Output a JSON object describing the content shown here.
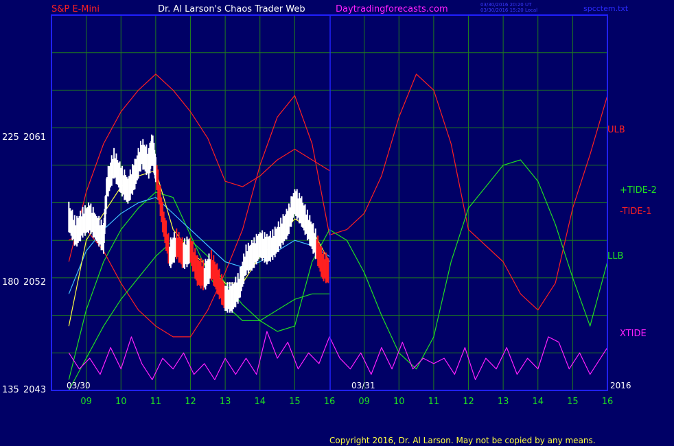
{
  "header": {
    "symbol": "S&P E-Mini",
    "author": "Dr. Al Larson's Chaos Trader Web",
    "site": "Daytradingforecasts.com",
    "stamp_ut": "03/30/2016 20:20 UT",
    "stamp_local": "03/30/2016 15:20 Local",
    "file": "spcctem.txt"
  },
  "footer": {
    "copyright": "Copyright 2016, Dr. Al Larson. May not be copied by any means."
  },
  "colors": {
    "background": "#000066",
    "frame": "#2020ff",
    "grid": "#1f7a1f",
    "ulb": "#ff2020",
    "llb": "#20e020",
    "xtide": "#ff20ff",
    "cyan_avg": "#40c0ff",
    "yellow_avg": "#ffff40"
  },
  "chart_data": {
    "type": "line",
    "title": "",
    "y_ticks": [
      {
        "left": "225",
        "right": "2061",
        "value": 2061
      },
      {
        "left": "180",
        "right": "2052",
        "value": 2052
      },
      {
        "left": "135",
        "right": "2043",
        "value": 2043
      }
    ],
    "ylim": [
      2043,
      2078
    ],
    "x_hours": [
      "09",
      "10",
      "11",
      "12",
      "13",
      "14",
      "15",
      "16",
      "09",
      "10",
      "11",
      "12",
      "13",
      "14",
      "15",
      "16"
    ],
    "dates": [
      "03/30",
      "03/31"
    ],
    "year": "2016",
    "session_divider_hour": 16,
    "legend": [
      {
        "label": "ULB",
        "color": "#ff2020"
      },
      {
        "label": "+TIDE-2",
        "color": "#20e020"
      },
      {
        "label": "-TIDE-1",
        "color": "#ff2020"
      },
      {
        "label": "LLB",
        "color": "#20e020"
      },
      {
        "label": "XTIDE",
        "color": "#ff20ff"
      }
    ],
    "series": [
      {
        "name": "ULB",
        "color": "#ff2020",
        "x": [
          8.5,
          9.0,
          9.5,
          10.0,
          10.5,
          11.0,
          11.5,
          12.0,
          12.5,
          13.0,
          13.5,
          14.0,
          14.5,
          15.0,
          15.5,
          16.0
        ],
        "y": [
          2055,
          2061.5,
          2066,
          2069,
          2071,
          2072.5,
          2071,
          2069,
          2066.5,
          2062.5,
          2062,
          2063,
          2064.5,
          2065.5,
          2064.5,
          2063.5
        ]
      },
      {
        "name": "LLB",
        "color": "#20e020",
        "x": [
          8.5,
          9.0,
          9.5,
          10.0,
          10.5,
          11.0,
          11.5,
          12.0,
          12.5,
          13.0,
          13.5,
          14.0,
          14.5,
          15.0,
          15.5,
          16.0
        ],
        "y": [
          2044,
          2050.5,
          2055,
          2058,
          2060,
          2061.5,
          2061,
          2057.5,
          2054,
          2051,
          2049.5,
          2049.5,
          2050.5,
          2051.5,
          2052,
          2052
        ]
      },
      {
        "name": "-TIDE-1",
        "color": "#ff2020",
        "x": [
          8.5,
          9.0,
          9.5,
          10.0,
          10.5,
          11.0,
          11.5,
          12.0,
          12.5,
          13.0,
          13.5,
          14.0,
          14.5,
          15.0,
          15.5,
          16.0,
          16.5,
          17.0,
          17.5,
          18.0,
          18.5,
          19.0,
          19.5,
          20.0,
          20.5,
          21.0,
          21.5,
          22.0,
          22.5,
          23.0,
          23.5,
          24.0
        ],
        "y": [
          2057,
          2058,
          2056,
          2053,
          2050.5,
          2049,
          2048,
          2048,
          2050.5,
          2054,
          2058,
          2064,
          2068.5,
          2070.5,
          2066,
          2057.5,
          2058,
          2059.5,
          2063,
          2068.5,
          2072.5,
          2071,
          2066,
          2058,
          2056.5,
          2055,
          2052,
          2050.5,
          2053,
          2060,
          2065,
          2070.5
        ]
      },
      {
        "name": "+TIDE-2",
        "color": "#20e020",
        "x": [
          8.5,
          9.0,
          9.5,
          10.0,
          10.5,
          11.0,
          11.5,
          12.0,
          12.5,
          13.0,
          13.5,
          14.0,
          14.5,
          15.0,
          15.5,
          16.0,
          16.5,
          17.0,
          17.5,
          18.0,
          18.5,
          19.0,
          19.5,
          20.0,
          20.5,
          21.0,
          21.5,
          22.0,
          22.5,
          23.0,
          23.5,
          24.0
        ],
        "y": [
          2043,
          2046,
          2049,
          2051.5,
          2053.5,
          2055.5,
          2057,
          2057,
          2055.5,
          2053,
          2051,
          2049.5,
          2048.5,
          2049,
          2055,
          2058,
          2057,
          2054,
          2050,
          2046.5,
          2045,
          2048,
          2055,
          2060,
          2062,
          2064,
          2064.5,
          2062.5,
          2058.5,
          2053.5,
          2049,
          2055
        ]
      },
      {
        "name": "XTIDE",
        "color": "#ff20ff",
        "x": [
          8.5,
          8.8,
          9.1,
          9.4,
          9.7,
          10.0,
          10.3,
          10.6,
          10.9,
          11.2,
          11.5,
          11.8,
          12.1,
          12.4,
          12.7,
          13.0,
          13.3,
          13.6,
          13.9,
          14.2,
          14.5,
          14.8,
          15.1,
          15.4,
          15.7,
          16.0,
          16.3,
          16.6,
          16.9,
          17.2,
          17.5,
          17.8,
          18.1,
          18.4,
          18.7,
          19.0,
          19.3,
          19.6,
          19.9,
          20.2,
          20.5,
          20.8,
          21.1,
          21.4,
          21.7,
          22.0,
          22.3,
          22.6,
          22.9,
          23.2,
          23.5,
          23.8,
          24.0
        ],
        "y": [
          2046.5,
          2045,
          2046,
          2044.5,
          2047,
          2045,
          2048,
          2045.5,
          2044,
          2046,
          2045,
          2046.5,
          2044.5,
          2045.5,
          2044,
          2046,
          2044.5,
          2046,
          2044.5,
          2048.5,
          2046,
          2047.5,
          2045,
          2046.5,
          2045.5,
          2048,
          2046,
          2045,
          2046.5,
          2044.5,
          2047,
          2045,
          2047.5,
          2045,
          2046,
          2045.5,
          2046,
          2044.5,
          2047,
          2044,
          2046,
          2045,
          2047,
          2044.5,
          2046,
          2045,
          2048,
          2047.5,
          2045,
          2046.5,
          2044.5,
          2046,
          2047
        ]
      },
      {
        "name": "Price",
        "color": "#ffffff",
        "x": [
          8.5,
          8.7,
          8.9,
          9.1,
          9.3,
          9.5,
          9.6,
          9.8,
          10.0,
          10.2,
          10.4,
          10.6,
          10.8,
          10.9,
          11.0,
          11.2,
          11.4,
          11.6,
          11.8,
          12.0,
          12.2,
          12.4,
          12.6,
          12.8,
          13.0,
          13.2,
          13.4,
          13.6,
          13.8,
          14.0,
          14.2,
          14.4,
          14.6,
          14.8,
          15.0,
          15.2,
          15.4,
          15.6,
          15.8,
          16.0
        ],
        "y": [
          2059,
          2057.5,
          2058.5,
          2059,
          2058,
          2057,
          2062,
          2064,
          2062.5,
          2061.5,
          2063,
          2065,
          2064,
          2065.5,
          2063.5,
          2059,
          2055.5,
          2056.5,
          2055.5,
          2056,
          2054,
          2053.5,
          2054.5,
          2053,
          2051.5,
          2051.5,
          2052.5,
          2055,
          2055.5,
          2056.5,
          2056,
          2056.5,
          2057.5,
          2058.5,
          2060.5,
          2059.5,
          2058,
          2056.5,
          2054.5,
          2054
        ]
      },
      {
        "name": "Cyan average",
        "color": "#40c0ff",
        "x": [
          8.5,
          9.0,
          9.5,
          10.0,
          10.5,
          11.0,
          11.5,
          12.0,
          12.5,
          13.0,
          13.5,
          14.0,
          14.5,
          15.0,
          15.5,
          16.0
        ],
        "y": [
          2052,
          2056,
          2058,
          2059.5,
          2060.5,
          2061,
          2059.5,
          2058,
          2056.5,
          2055,
          2054.5,
          2055,
          2056,
          2057,
          2056.5,
          2055.5
        ]
      },
      {
        "name": "Yellow average",
        "color": "#ffff40",
        "x": [
          8.5,
          9.0,
          9.5,
          10.0,
          10.5,
          11.0,
          11.5,
          12.0,
          12.5,
          13.0,
          13.5,
          14.0,
          14.5,
          15.0,
          15.5,
          16.0
        ],
        "y": [
          2049,
          2057,
          2059.5,
          2062,
          2063,
          2063.5,
          2058,
          2056,
          2054.5,
          2053,
          2053,
          2055.5,
          2057,
          2059,
          2058,
          2055
        ]
      }
    ]
  }
}
